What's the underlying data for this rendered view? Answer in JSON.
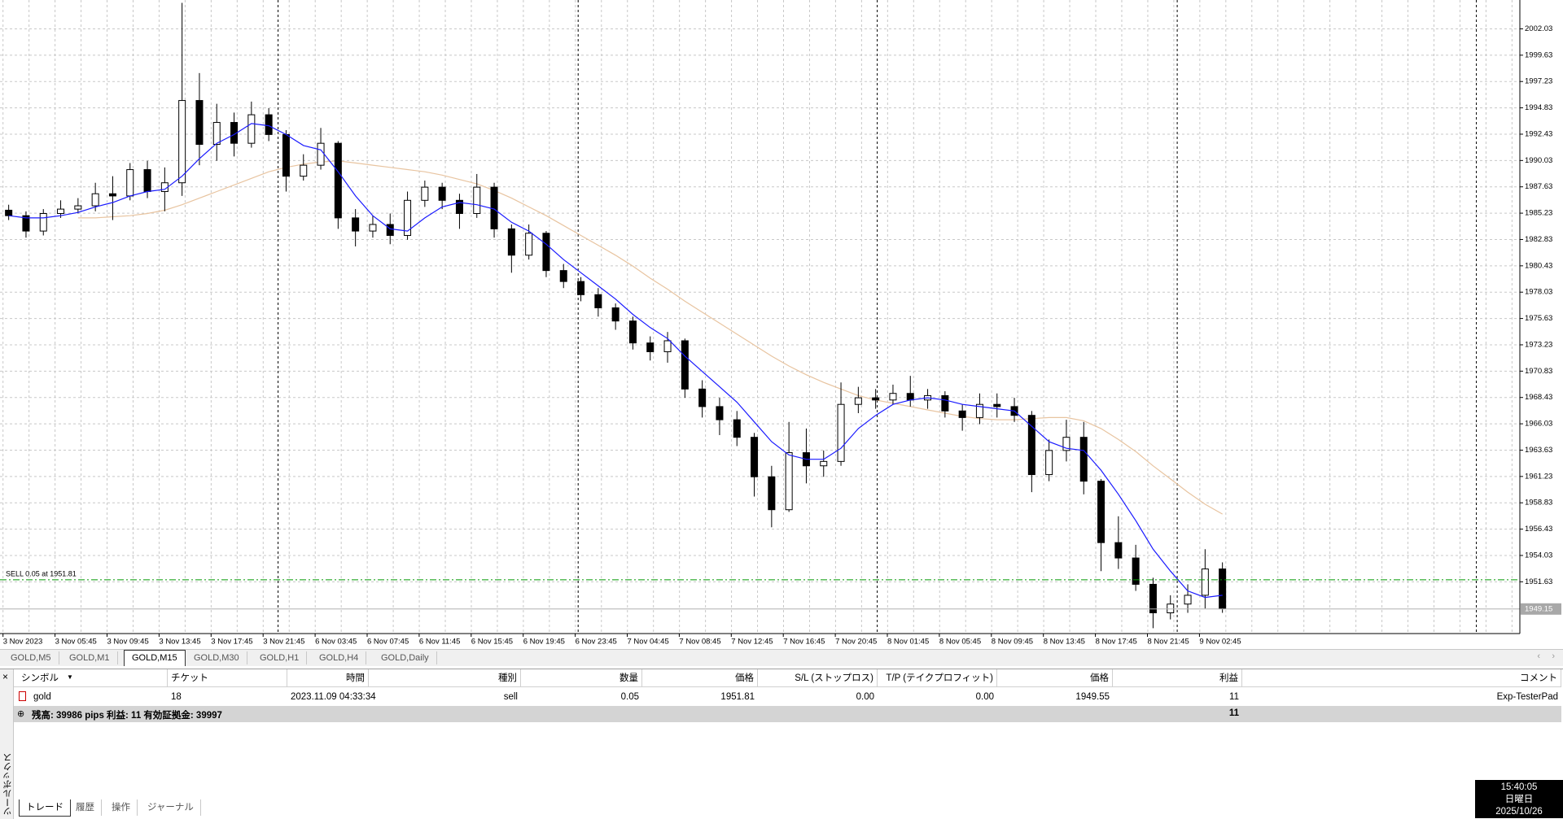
{
  "chart_data": {
    "type": "candlestick",
    "categories": [
      "3 Nov 2023",
      "3 Nov 05:45",
      "3 Nov 09:45",
      "3 Nov 13:45",
      "3 Nov 17:45",
      "3 Nov 21:45",
      "6 Nov 03:45",
      "6 Nov 07:45",
      "6 Nov 11:45",
      "6 Nov 15:45",
      "6 Nov 19:45",
      "6 Nov 23:45",
      "7 Nov 04:45",
      "7 Nov 08:45",
      "7 Nov 12:45",
      "7 Nov 16:45",
      "7 Nov 20:45",
      "8 Nov 01:45",
      "8 Nov 05:45",
      "8 Nov 09:45",
      "8 Nov 13:45",
      "8 Nov 17:45",
      "8 Nov 21:45",
      "9 Nov 02:45"
    ],
    "open": [
      1985.5,
      1985.0,
      1983.6,
      1985.2,
      1985.6,
      1985.9,
      1987.0,
      1986.8,
      1989.2,
      1987.2,
      1988.0,
      1995.5,
      1991.5,
      1993.5,
      1991.6,
      1994.2,
      1992.4,
      1988.6,
      1989.6,
      1991.6,
      1984.8,
      1983.6,
      1984.2,
      1983.2,
      1986.4,
      1987.6,
      1986.4,
      1985.2,
      1987.6,
      1983.8,
      1981.4,
      1983.4,
      1980.0,
      1979.0,
      1977.8,
      1976.6,
      1975.4,
      1973.4,
      1972.6,
      1973.6,
      1969.2,
      1967.6,
      1966.4,
      1964.8,
      1961.2,
      1958.2,
      1963.4,
      1962.2,
      1962.6,
      1967.8,
      1968.4,
      1968.2,
      1968.8,
      1968.2,
      1968.6,
      1967.2,
      1966.6,
      1967.8,
      1967.6,
      1966.8,
      1961.4,
      1963.6,
      1964.8,
      1960.8,
      1955.2,
      1953.8,
      1951.4,
      1948.8,
      1949.6,
      1950.4,
      1952.8
    ],
    "high": [
      1986.0,
      1985.4,
      1985.6,
      1986.4,
      1986.6,
      1988.0,
      1988.6,
      1989.8,
      1990.0,
      1989.4,
      2004.4,
      1998.0,
      1995.2,
      1994.4,
      1995.4,
      1994.8,
      1992.8,
      1990.6,
      1993.0,
      1991.8,
      1985.6,
      1985.0,
      1985.2,
      1987.2,
      1988.2,
      1988.0,
      1987.0,
      1988.8,
      1988.0,
      1984.2,
      1984.2,
      1983.6,
      1980.6,
      1979.4,
      1978.4,
      1977.0,
      1975.8,
      1974.0,
      1974.4,
      1973.8,
      1970.0,
      1968.4,
      1967.2,
      1965.2,
      1962.2,
      1966.2,
      1965.6,
      1963.6,
      1969.8,
      1969.4,
      1969.2,
      1969.6,
      1970.4,
      1969.2,
      1969.0,
      1967.8,
      1968.8,
      1968.8,
      1968.4,
      1967.2,
      1964.6,
      1966.4,
      1966.2,
      1961.0,
      1957.6,
      1955.0,
      1952.0,
      1950.4,
      1951.4,
      1954.6,
      1953.4
    ],
    "low": [
      1984.6,
      1983.0,
      1983.2,
      1984.8,
      1985.2,
      1985.4,
      1984.6,
      1986.4,
      1986.6,
      1985.4,
      1986.8,
      1989.6,
      1990.0,
      1990.4,
      1991.2,
      1991.8,
      1987.2,
      1988.2,
      1989.2,
      1983.8,
      1982.2,
      1983.0,
      1982.4,
      1982.8,
      1985.8,
      1985.6,
      1983.8,
      1984.8,
      1983.0,
      1979.8,
      1981.0,
      1979.4,
      1978.4,
      1977.2,
      1975.8,
      1974.6,
      1972.8,
      1971.8,
      1971.6,
      1968.4,
      1966.6,
      1965.0,
      1964.0,
      1959.4,
      1956.6,
      1958.0,
      1960.6,
      1961.2,
      1962.2,
      1967.0,
      1967.4,
      1967.8,
      1967.6,
      1967.4,
      1966.6,
      1965.4,
      1966.0,
      1966.6,
      1966.2,
      1959.8,
      1960.8,
      1962.6,
      1959.6,
      1952.6,
      1952.8,
      1950.8,
      1947.4,
      1948.2,
      1948.8,
      1949.2,
      1948.8
    ],
    "close": [
      1985.0,
      1983.6,
      1985.2,
      1985.6,
      1985.9,
      1987.0,
      1986.8,
      1989.2,
      1987.2,
      1988.0,
      1995.5,
      1991.5,
      1993.5,
      1991.6,
      1994.2,
      1992.4,
      1988.6,
      1989.6,
      1991.6,
      1984.8,
      1983.6,
      1984.2,
      1983.2,
      1986.4,
      1987.6,
      1986.4,
      1985.2,
      1987.6,
      1983.8,
      1981.4,
      1983.4,
      1980.0,
      1979.0,
      1977.8,
      1976.6,
      1975.4,
      1973.4,
      1972.6,
      1973.6,
      1969.2,
      1967.6,
      1966.4,
      1964.8,
      1961.2,
      1958.2,
      1963.4,
      1962.2,
      1962.6,
      1967.8,
      1968.4,
      1968.2,
      1968.8,
      1968.2,
      1968.6,
      1967.2,
      1966.6,
      1967.8,
      1967.6,
      1966.8,
      1961.4,
      1963.6,
      1964.8,
      1960.8,
      1955.2,
      1953.8,
      1951.4,
      1948.8,
      1949.6,
      1950.4,
      1952.8,
      1949.2
    ],
    "ma_fast": {
      "color": "#1a1aff",
      "values": [
        1985.0,
        1984.8,
        1984.8,
        1985.0,
        1985.3,
        1985.8,
        1986.2,
        1986.8,
        1987.2,
        1987.4,
        1988.6,
        1990.2,
        1991.6,
        1992.4,
        1993.4,
        1993.2,
        1992.4,
        1991.4,
        1991.0,
        1989.0,
        1986.8,
        1985.0,
        1983.8,
        1983.6,
        1984.8,
        1985.8,
        1986.2,
        1986.0,
        1985.6,
        1984.4,
        1983.6,
        1982.4,
        1981.0,
        1979.8,
        1978.6,
        1977.4,
        1976.0,
        1974.8,
        1973.8,
        1972.2,
        1970.8,
        1969.4,
        1968.0,
        1966.2,
        1964.4,
        1963.2,
        1962.8,
        1962.8,
        1963.8,
        1965.6,
        1966.8,
        1967.8,
        1968.2,
        1968.4,
        1968.2,
        1967.8,
        1967.6,
        1967.4,
        1967.2,
        1965.8,
        1964.4,
        1963.8,
        1963.6,
        1961.8,
        1959.6,
        1957.2,
        1954.6,
        1952.6,
        1950.8,
        1950.2,
        1950.4
      ]
    },
    "ma_slow": {
      "color": "#e8c4a0",
      "values": [
        null,
        null,
        null,
        null,
        1984.8,
        1984.8,
        1984.9,
        1985.0,
        1985.2,
        1985.5,
        1986.0,
        1986.6,
        1987.2,
        1987.8,
        1988.4,
        1989.0,
        1989.4,
        1989.7,
        1989.9,
        1990.0,
        1989.8,
        1989.6,
        1989.4,
        1989.2,
        1989.0,
        1988.7,
        1988.3,
        1987.9,
        1987.3,
        1986.6,
        1985.8,
        1985.0,
        1984.1,
        1983.2,
        1982.3,
        1981.4,
        1980.4,
        1979.3,
        1978.3,
        1977.2,
        1976.2,
        1975.2,
        1974.2,
        1973.2,
        1972.2,
        1971.3,
        1970.5,
        1969.8,
        1969.2,
        1968.6,
        1968.2,
        1967.9,
        1967.6,
        1967.3,
        1967.0,
        1966.7,
        1966.5,
        1966.4,
        1966.4,
        1966.5,
        1966.6,
        1966.6,
        1966.3,
        1965.6,
        1964.6,
        1963.5,
        1962.2,
        1961.0,
        1959.8,
        1958.7,
        1957.8
      ]
    },
    "ylim": [
      1946.91,
      2004.66
    ],
    "yticks": [
      2002.03,
      1999.63,
      1997.23,
      1994.83,
      1992.43,
      1990.03,
      1987.63,
      1985.23,
      1982.83,
      1980.43,
      1978.03,
      1975.63,
      1973.23,
      1970.83,
      1968.43,
      1966.03,
      1963.63,
      1961.23,
      1958.83,
      1956.43,
      1954.03,
      1951.63
    ],
    "grid": true,
    "order_line": {
      "label": "SELL 0.05 at 1951.81",
      "value": 1951.81,
      "color": "#009900"
    },
    "bid": 1949.15
  },
  "tabs": [
    "GOLD,M5",
    "GOLD,M1",
    "GOLD,M15",
    "GOLD,M30",
    "GOLD,H1",
    "GOLD,H4",
    "GOLD,Daily"
  ],
  "active_tab": 2,
  "toolbox": {
    "title": "ツールボックス",
    "columns": [
      "シンボル",
      "チケット",
      "時間",
      "種別",
      "数量",
      "価格",
      "S/L (ストップロス)",
      "T/P (テイクプロフィット)",
      "価格",
      "利益",
      "コメント"
    ],
    "rows": [
      [
        "gold",
        "18",
        "2023.11.09 04:33:34",
        "sell",
        "0.05",
        "1951.81",
        "0.00",
        "0.00",
        "1949.55",
        "11",
        "Exp-TesterPad"
      ]
    ],
    "summary": {
      "text": "残高: 39986 pips  利益: 11  有効証拠金: 39997",
      "profit": "11"
    },
    "tabs": [
      "トレード",
      "履歴",
      "操作",
      "ジャーナル"
    ]
  },
  "clock": {
    "time": "15:40:05",
    "day": "日曜日",
    "date": "2025/10/26"
  }
}
